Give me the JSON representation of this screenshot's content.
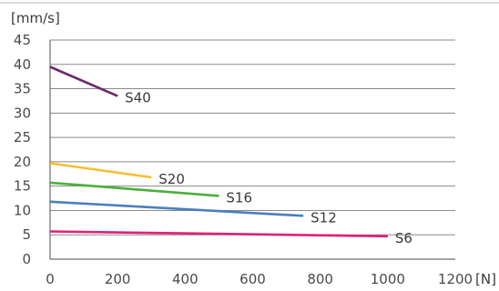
{
  "chart_data": {
    "type": "line",
    "ylabel": "[mm/s]",
    "xlabel": "[N]",
    "xlim": [
      0,
      1200
    ],
    "ylim": [
      0,
      45
    ],
    "x_ticks": [
      "0",
      "200",
      "400",
      "600",
      "800",
      "1000",
      "1200"
    ],
    "y_ticks": [
      "0",
      "5",
      "10",
      "15",
      "20",
      "25",
      "30",
      "35",
      "40",
      "45"
    ],
    "grid": true,
    "series": [
      {
        "name": "S40",
        "color": "#6b2a6b",
        "points": [
          [
            0,
            39.5
          ],
          [
            200,
            33.5
          ]
        ]
      },
      {
        "name": "S20",
        "color": "#f5c030",
        "points": [
          [
            0,
            19.7
          ],
          [
            300,
            16.8
          ]
        ]
      },
      {
        "name": "S16",
        "color": "#4caf3c",
        "points": [
          [
            0,
            15.7
          ],
          [
            500,
            13.0
          ]
        ]
      },
      {
        "name": "S12",
        "color": "#4a7fbd",
        "points": [
          [
            0,
            11.8
          ],
          [
            750,
            8.9
          ]
        ]
      },
      {
        "name": "S6",
        "color": "#e0207c",
        "points": [
          [
            0,
            5.7
          ],
          [
            1000,
            4.7
          ]
        ]
      }
    ]
  }
}
